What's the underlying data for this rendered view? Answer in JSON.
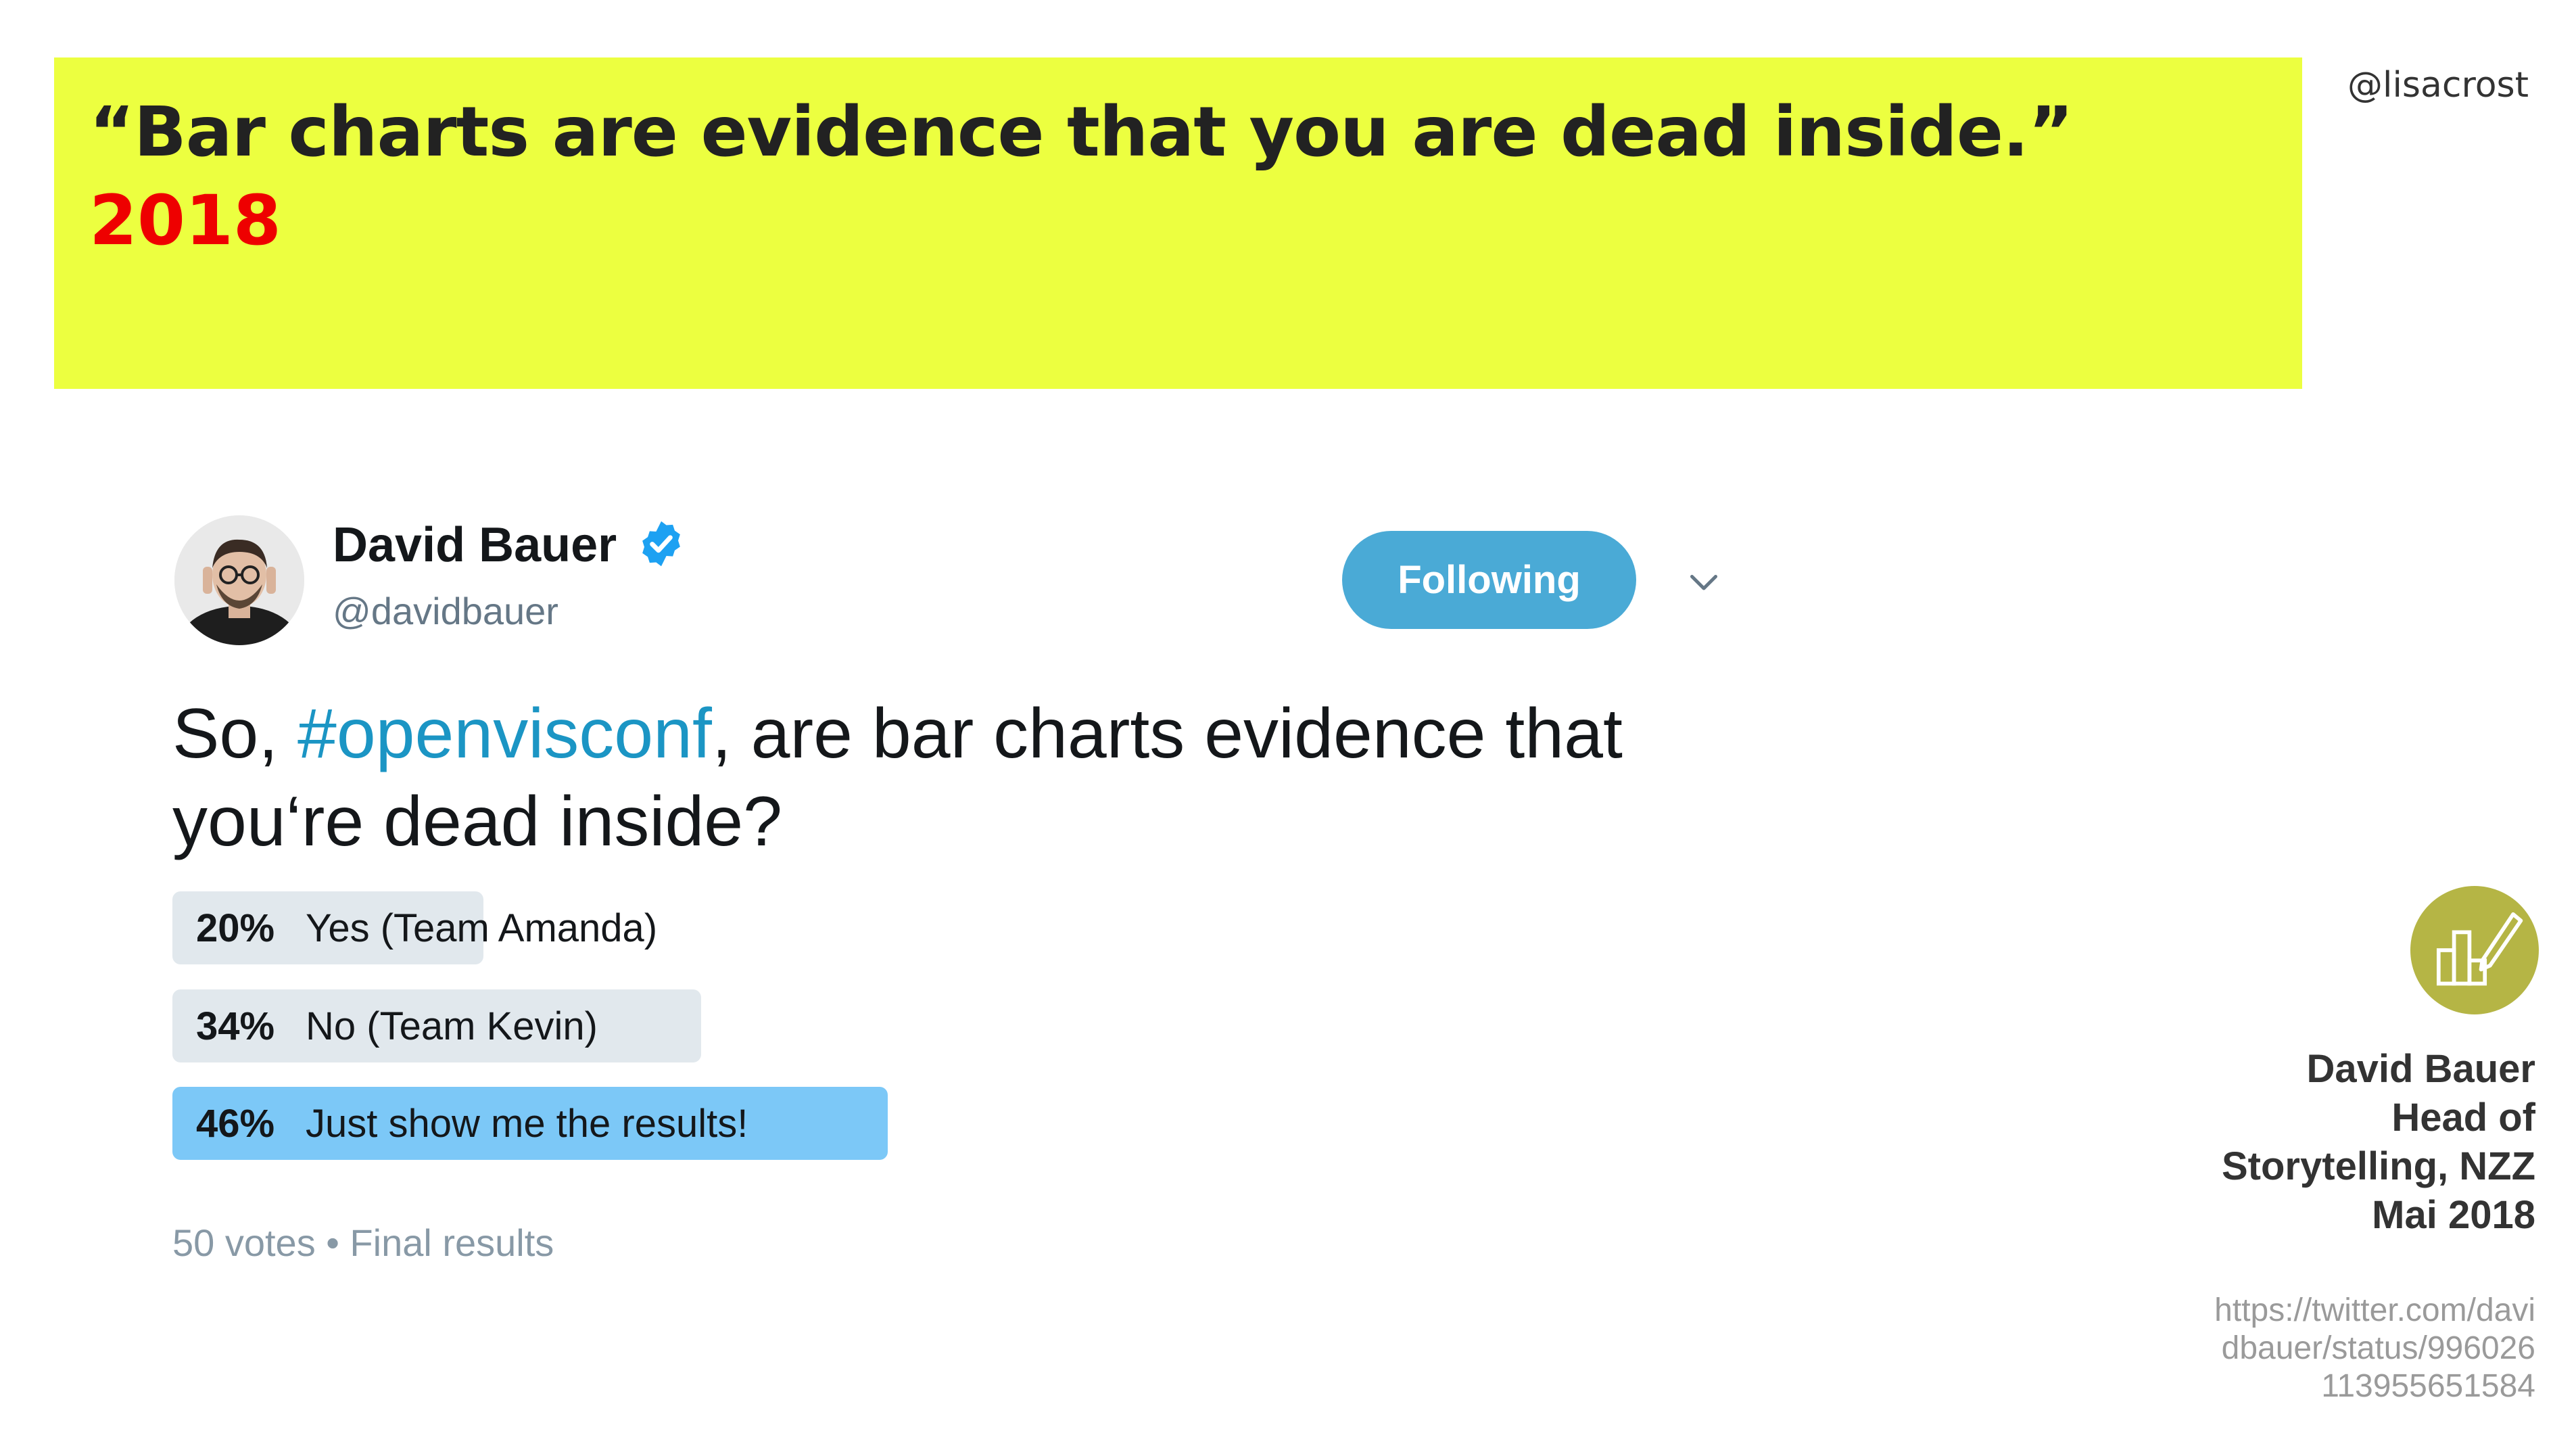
{
  "slide": {
    "quote": "“Bar charts are evidence that you are dead inside.”",
    "year": "2018",
    "handle": "@lisacrost",
    "colors": {
      "banner": "#ecff40",
      "year": "#ee0000"
    }
  },
  "tweet": {
    "author_name": "David Bauer",
    "author_handle": "@davidbauer",
    "follow_label": "Following",
    "text_before": "So, ",
    "hashtag": "#openvisconf",
    "text_after": ", are bar charts evidence that you‘re dead inside?",
    "icons": [
      "avatar",
      "verified-badge-icon",
      "chevron-down-icon"
    ],
    "poll": {
      "options": [
        {
          "percent_label": "20%",
          "label": "Yes (Team Amanda)",
          "percent": 20
        },
        {
          "percent_label": "34%",
          "label": "No (Team Kevin)",
          "percent": 34
        },
        {
          "percent_label": "46%",
          "label": "Just show me the results!",
          "percent": 46
        }
      ],
      "footer": "50 votes • Final results",
      "colors": {
        "bar": "#e1e8ed",
        "winner": "#7cc8f7"
      }
    }
  },
  "credit": {
    "lines": [
      "David Bauer",
      "Head of",
      "Storytelling, NZZ",
      "Mai 2018"
    ],
    "url_lines": [
      "https://twitter.com/davi",
      "dbauer/status/996026",
      "113955651584"
    ],
    "logo_icon": "bar-chart-pen-icon",
    "logo_color": "#b5b545"
  }
}
